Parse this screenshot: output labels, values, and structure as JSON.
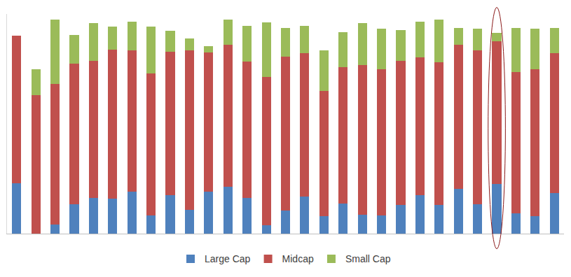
{
  "chart_data": {
    "type": "bar",
    "stacked": true,
    "categories": [
      null,
      null,
      null,
      null,
      null,
      null,
      null,
      null,
      null,
      null,
      null,
      null,
      null,
      null,
      null,
      null,
      null,
      null,
      null,
      null,
      null,
      null,
      null,
      null,
      null,
      null,
      null,
      null,
      null
    ],
    "series": [
      {
        "name": "Large Cap",
        "color": "#4f81bd",
        "values": [
          73,
          0,
          13,
          43,
          52,
          51,
          61,
          27,
          56,
          35,
          61,
          68,
          52,
          12,
          34,
          54,
          25,
          44,
          28,
          26,
          42,
          56,
          42,
          65,
          43,
          72,
          30,
          25,
          59
        ]
      },
      {
        "name": "Midcap",
        "color": "#c0504d",
        "values": [
          215,
          202,
          205,
          205,
          200,
          217,
          206,
          206,
          209,
          232,
          203,
          207,
          199,
          216,
          224,
          209,
          183,
          199,
          218,
          213,
          210,
          201,
          208,
          210,
          224,
          208,
          205,
          215,
          204
        ]
      },
      {
        "name": "Small Cap",
        "color": "#9bbb59",
        "values": [
          0,
          38,
          94,
          41,
          55,
          34,
          42,
          69,
          31,
          17,
          9,
          37,
          52,
          80,
          42,
          40,
          59,
          50,
          61,
          60,
          45,
          52,
          62,
          25,
          32,
          12,
          65,
          59,
          37
        ]
      }
    ],
    "ylim": [
      0,
      320
    ],
    "grid": false,
    "legend": "bottom",
    "tick_labels": false
  }
}
